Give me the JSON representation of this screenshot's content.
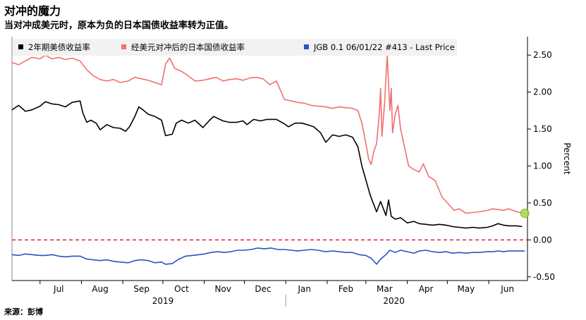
{
  "title": "对冲的魔力",
  "subtitle": "当对冲成美元时，原本为负的日本国债收益率转为正值。",
  "source": "来源：彭博",
  "chart_data": {
    "type": "line",
    "title": "对冲的魔力",
    "ylabel": "Percent",
    "ylim": [
      -0.55,
      2.75
    ],
    "xlim": [
      "2019-06-10",
      "2020-06-30"
    ],
    "y_ticks": [
      "2.50",
      "2.00",
      "1.50",
      "1.00",
      "0.50",
      "0.00",
      "-0.50"
    ],
    "x_ticks": [
      {
        "label": "Jul",
        "date": "2019-07-15"
      },
      {
        "label": "Aug",
        "date": "2019-08-15"
      },
      {
        "label": "Sep",
        "date": "2019-09-15"
      },
      {
        "label": "Oct",
        "date": "2019-10-15"
      },
      {
        "label": "Nov",
        "date": "2019-11-15"
      },
      {
        "label": "Dec",
        "date": "2019-12-15"
      },
      {
        "label": "Jan",
        "date": "2020-01-15"
      },
      {
        "label": "Feb",
        "date": "2020-02-15"
      },
      {
        "label": "Mar",
        "date": "2020-03-15"
      },
      {
        "label": "Apr",
        "date": "2020-04-15"
      },
      {
        "label": "May",
        "date": "2020-05-15"
      },
      {
        "label": "Jun",
        "date": "2020-06-15"
      }
    ],
    "year_labels": [
      {
        "label": "2019",
        "date": "2019-10-01"
      },
      {
        "label": "2020",
        "date": "2020-03-22"
      }
    ],
    "year_divider": "2020-01-01",
    "reference_line": {
      "y": 0.0,
      "color": "#e0202a",
      "style": "dashed"
    },
    "legend_position": "top",
    "series": [
      {
        "name": "2年期美债收益率",
        "color": "#000000",
        "points": [
          [
            "2019-06-10",
            1.76
          ],
          [
            "2019-06-15",
            1.82
          ],
          [
            "2019-06-20",
            1.74
          ],
          [
            "2019-06-25",
            1.76
          ],
          [
            "2019-07-01",
            1.81
          ],
          [
            "2019-07-05",
            1.87
          ],
          [
            "2019-07-10",
            1.84
          ],
          [
            "2019-07-15",
            1.83
          ],
          [
            "2019-07-20",
            1.8
          ],
          [
            "2019-07-25",
            1.86
          ],
          [
            "2019-07-31",
            1.88
          ],
          [
            "2019-08-02",
            1.72
          ],
          [
            "2019-08-05",
            1.59
          ],
          [
            "2019-08-08",
            1.62
          ],
          [
            "2019-08-12",
            1.58
          ],
          [
            "2019-08-15",
            1.49
          ],
          [
            "2019-08-20",
            1.56
          ],
          [
            "2019-08-25",
            1.52
          ],
          [
            "2019-08-30",
            1.51
          ],
          [
            "2019-09-03",
            1.47
          ],
          [
            "2019-09-06",
            1.53
          ],
          [
            "2019-09-10",
            1.67
          ],
          [
            "2019-09-13",
            1.8
          ],
          [
            "2019-09-16",
            1.76
          ],
          [
            "2019-09-20",
            1.7
          ],
          [
            "2019-09-25",
            1.67
          ],
          [
            "2019-09-30",
            1.62
          ],
          [
            "2019-10-03",
            1.41
          ],
          [
            "2019-10-08",
            1.43
          ],
          [
            "2019-10-11",
            1.58
          ],
          [
            "2019-10-15",
            1.62
          ],
          [
            "2019-10-20",
            1.58
          ],
          [
            "2019-10-25",
            1.62
          ],
          [
            "2019-10-31",
            1.52
          ],
          [
            "2019-11-05",
            1.62
          ],
          [
            "2019-11-08",
            1.67
          ],
          [
            "2019-11-15",
            1.61
          ],
          [
            "2019-11-20",
            1.59
          ],
          [
            "2019-11-25",
            1.59
          ],
          [
            "2019-11-30",
            1.61
          ],
          [
            "2019-12-03",
            1.56
          ],
          [
            "2019-12-08",
            1.63
          ],
          [
            "2019-12-13",
            1.61
          ],
          [
            "2019-12-18",
            1.63
          ],
          [
            "2019-12-25",
            1.63
          ],
          [
            "2019-12-31",
            1.57
          ],
          [
            "2020-01-03",
            1.53
          ],
          [
            "2020-01-08",
            1.58
          ],
          [
            "2020-01-13",
            1.58
          ],
          [
            "2020-01-17",
            1.56
          ],
          [
            "2020-01-22",
            1.53
          ],
          [
            "2020-01-27",
            1.45
          ],
          [
            "2020-01-31",
            1.32
          ],
          [
            "2020-02-05",
            1.42
          ],
          [
            "2020-02-10",
            1.4
          ],
          [
            "2020-02-15",
            1.42
          ],
          [
            "2020-02-20",
            1.39
          ],
          [
            "2020-02-24",
            1.26
          ],
          [
            "2020-02-27",
            1.0
          ],
          [
            "2020-03-02",
            0.75
          ],
          [
            "2020-03-04",
            0.62
          ],
          [
            "2020-03-06",
            0.52
          ],
          [
            "2020-03-09",
            0.38
          ],
          [
            "2020-03-12",
            0.52
          ],
          [
            "2020-03-16",
            0.33
          ],
          [
            "2020-03-18",
            0.54
          ],
          [
            "2020-03-20",
            0.32
          ],
          [
            "2020-03-23",
            0.28
          ],
          [
            "2020-03-27",
            0.3
          ],
          [
            "2020-04-01",
            0.23
          ],
          [
            "2020-04-06",
            0.25
          ],
          [
            "2020-04-10",
            0.22
          ],
          [
            "2020-04-15",
            0.21
          ],
          [
            "2020-04-20",
            0.2
          ],
          [
            "2020-04-25",
            0.21
          ],
          [
            "2020-04-30",
            0.2
          ],
          [
            "2020-05-05",
            0.18
          ],
          [
            "2020-05-10",
            0.17
          ],
          [
            "2020-05-15",
            0.16
          ],
          [
            "2020-05-20",
            0.17
          ],
          [
            "2020-05-25",
            0.16
          ],
          [
            "2020-05-31",
            0.17
          ],
          [
            "2020-06-04",
            0.19
          ],
          [
            "2020-06-08",
            0.22
          ],
          [
            "2020-06-12",
            0.2
          ],
          [
            "2020-06-16",
            0.19
          ],
          [
            "2020-06-22",
            0.19
          ],
          [
            "2020-06-26",
            0.18
          ]
        ]
      },
      {
        "name": "经美元对冲后的日本国债收益率",
        "color": "#f07070",
        "points": [
          [
            "2019-06-10",
            2.4
          ],
          [
            "2019-06-15",
            2.37
          ],
          [
            "2019-06-20",
            2.42
          ],
          [
            "2019-06-25",
            2.47
          ],
          [
            "2019-07-01",
            2.45
          ],
          [
            "2019-07-05",
            2.5
          ],
          [
            "2019-07-10",
            2.45
          ],
          [
            "2019-07-15",
            2.47
          ],
          [
            "2019-07-20",
            2.44
          ],
          [
            "2019-07-25",
            2.46
          ],
          [
            "2019-07-31",
            2.42
          ],
          [
            "2019-08-05",
            2.3
          ],
          [
            "2019-08-10",
            2.22
          ],
          [
            "2019-08-15",
            2.17
          ],
          [
            "2019-08-20",
            2.15
          ],
          [
            "2019-08-25",
            2.17
          ],
          [
            "2019-08-30",
            2.13
          ],
          [
            "2019-09-05",
            2.15
          ],
          [
            "2019-09-10",
            2.2
          ],
          [
            "2019-09-15",
            2.18
          ],
          [
            "2019-09-20",
            2.16
          ],
          [
            "2019-09-25",
            2.13
          ],
          [
            "2019-09-30",
            2.1
          ],
          [
            "2019-10-03",
            2.38
          ],
          [
            "2019-10-06",
            2.46
          ],
          [
            "2019-10-10",
            2.32
          ],
          [
            "2019-10-15",
            2.28
          ],
          [
            "2019-10-20",
            2.22
          ],
          [
            "2019-10-25",
            2.15
          ],
          [
            "2019-10-31",
            2.16
          ],
          [
            "2019-11-05",
            2.18
          ],
          [
            "2019-11-10",
            2.2
          ],
          [
            "2019-11-15",
            2.15
          ],
          [
            "2019-11-20",
            2.17
          ],
          [
            "2019-11-25",
            2.18
          ],
          [
            "2019-11-30",
            2.16
          ],
          [
            "2019-12-05",
            2.19
          ],
          [
            "2019-12-10",
            2.2
          ],
          [
            "2019-12-15",
            2.18
          ],
          [
            "2019-12-20",
            2.1
          ],
          [
            "2019-12-25",
            2.15
          ],
          [
            "2019-12-31",
            1.9
          ],
          [
            "2020-01-05",
            1.88
          ],
          [
            "2020-01-10",
            1.86
          ],
          [
            "2020-01-15",
            1.85
          ],
          [
            "2020-01-20",
            1.82
          ],
          [
            "2020-01-25",
            1.81
          ],
          [
            "2020-01-31",
            1.8
          ],
          [
            "2020-02-05",
            1.78
          ],
          [
            "2020-02-10",
            1.8
          ],
          [
            "2020-02-15",
            1.79
          ],
          [
            "2020-02-20",
            1.78
          ],
          [
            "2020-02-24",
            1.75
          ],
          [
            "2020-02-27",
            1.58
          ],
          [
            "2020-03-01",
            1.3
          ],
          [
            "2020-03-03",
            1.1
          ],
          [
            "2020-03-05",
            1.02
          ],
          [
            "2020-03-07",
            1.2
          ],
          [
            "2020-03-09",
            1.3
          ],
          [
            "2020-03-11",
            1.7
          ],
          [
            "2020-03-12",
            2.05
          ],
          [
            "2020-03-13",
            1.4
          ],
          [
            "2020-03-15",
            1.85
          ],
          [
            "2020-03-16",
            2.2
          ],
          [
            "2020-03-17",
            2.5
          ],
          [
            "2020-03-18",
            2.1
          ],
          [
            "2020-03-19",
            1.75
          ],
          [
            "2020-03-20",
            2.05
          ],
          [
            "2020-03-21",
            1.45
          ],
          [
            "2020-03-23",
            1.7
          ],
          [
            "2020-03-25",
            1.82
          ],
          [
            "2020-03-27",
            1.5
          ],
          [
            "2020-03-30",
            1.25
          ],
          [
            "2020-04-02",
            1.0
          ],
          [
            "2020-04-06",
            0.95
          ],
          [
            "2020-04-10",
            0.92
          ],
          [
            "2020-04-13",
            1.03
          ],
          [
            "2020-04-17",
            0.86
          ],
          [
            "2020-04-22",
            0.8
          ],
          [
            "2020-04-27",
            0.58
          ],
          [
            "2020-05-01",
            0.5
          ],
          [
            "2020-05-06",
            0.4
          ],
          [
            "2020-05-10",
            0.42
          ],
          [
            "2020-05-15",
            0.36
          ],
          [
            "2020-05-20",
            0.37
          ],
          [
            "2020-05-25",
            0.38
          ],
          [
            "2020-05-31",
            0.4
          ],
          [
            "2020-06-04",
            0.42
          ],
          [
            "2020-06-08",
            0.41
          ],
          [
            "2020-06-12",
            0.4
          ],
          [
            "2020-06-16",
            0.42
          ],
          [
            "2020-06-22",
            0.38
          ],
          [
            "2020-06-28",
            0.36
          ]
        ]
      },
      {
        "name": "JGB 0.1 06/01/22 #413 - Last Price",
        "color": "#2754c5",
        "points": [
          [
            "2019-06-10",
            -0.2
          ],
          [
            "2019-06-15",
            -0.21
          ],
          [
            "2019-06-20",
            -0.19
          ],
          [
            "2019-06-25",
            -0.2
          ],
          [
            "2019-07-01",
            -0.21
          ],
          [
            "2019-07-05",
            -0.21
          ],
          [
            "2019-07-10",
            -0.2
          ],
          [
            "2019-07-15",
            -0.22
          ],
          [
            "2019-07-20",
            -0.23
          ],
          [
            "2019-07-25",
            -0.22
          ],
          [
            "2019-07-31",
            -0.22
          ],
          [
            "2019-08-05",
            -0.26
          ],
          [
            "2019-08-10",
            -0.27
          ],
          [
            "2019-08-15",
            -0.28
          ],
          [
            "2019-08-20",
            -0.27
          ],
          [
            "2019-08-25",
            -0.29
          ],
          [
            "2019-08-30",
            -0.3
          ],
          [
            "2019-09-05",
            -0.31
          ],
          [
            "2019-09-10",
            -0.28
          ],
          [
            "2019-09-15",
            -0.27
          ],
          [
            "2019-09-20",
            -0.28
          ],
          [
            "2019-09-25",
            -0.31
          ],
          [
            "2019-09-30",
            -0.3
          ],
          [
            "2019-10-03",
            -0.33
          ],
          [
            "2019-10-08",
            -0.32
          ],
          [
            "2019-10-13",
            -0.26
          ],
          [
            "2019-10-18",
            -0.22
          ],
          [
            "2019-10-23",
            -0.21
          ],
          [
            "2019-10-28",
            -0.2
          ],
          [
            "2019-11-01",
            -0.19
          ],
          [
            "2019-11-06",
            -0.17
          ],
          [
            "2019-11-11",
            -0.16
          ],
          [
            "2019-11-16",
            -0.17
          ],
          [
            "2019-11-21",
            -0.16
          ],
          [
            "2019-11-26",
            -0.14
          ],
          [
            "2019-12-01",
            -0.14
          ],
          [
            "2019-12-06",
            -0.13
          ],
          [
            "2019-12-11",
            -0.11
          ],
          [
            "2019-12-16",
            -0.12
          ],
          [
            "2019-12-21",
            -0.11
          ],
          [
            "2019-12-26",
            -0.13
          ],
          [
            "2019-12-31",
            -0.13
          ],
          [
            "2020-01-05",
            -0.14
          ],
          [
            "2020-01-10",
            -0.15
          ],
          [
            "2020-01-15",
            -0.14
          ],
          [
            "2020-01-20",
            -0.13
          ],
          [
            "2020-01-25",
            -0.14
          ],
          [
            "2020-01-31",
            -0.16
          ],
          [
            "2020-02-05",
            -0.15
          ],
          [
            "2020-02-10",
            -0.16
          ],
          [
            "2020-02-15",
            -0.17
          ],
          [
            "2020-02-20",
            -0.17
          ],
          [
            "2020-02-25",
            -0.2
          ],
          [
            "2020-03-01",
            -0.21
          ],
          [
            "2020-03-05",
            -0.25
          ],
          [
            "2020-03-09",
            -0.33
          ],
          [
            "2020-03-12",
            -0.26
          ],
          [
            "2020-03-16",
            -0.2
          ],
          [
            "2020-03-19",
            -0.14
          ],
          [
            "2020-03-23",
            -0.17
          ],
          [
            "2020-03-27",
            -0.14
          ],
          [
            "2020-04-01",
            -0.16
          ],
          [
            "2020-04-06",
            -0.18
          ],
          [
            "2020-04-10",
            -0.15
          ],
          [
            "2020-04-15",
            -0.14
          ],
          [
            "2020-04-20",
            -0.16
          ],
          [
            "2020-04-25",
            -0.17
          ],
          [
            "2020-04-30",
            -0.16
          ],
          [
            "2020-05-05",
            -0.18
          ],
          [
            "2020-05-10",
            -0.17
          ],
          [
            "2020-05-15",
            -0.18
          ],
          [
            "2020-05-20",
            -0.17
          ],
          [
            "2020-05-25",
            -0.17
          ],
          [
            "2020-05-31",
            -0.16
          ],
          [
            "2020-06-04",
            -0.16
          ],
          [
            "2020-06-08",
            -0.15
          ],
          [
            "2020-06-12",
            -0.16
          ],
          [
            "2020-06-16",
            -0.15
          ],
          [
            "2020-06-22",
            -0.15
          ],
          [
            "2020-06-28",
            -0.15
          ]
        ]
      }
    ],
    "highlight_marker": {
      "date": "2020-06-28",
      "y": 0.36,
      "color": "#a8d84c"
    }
  }
}
